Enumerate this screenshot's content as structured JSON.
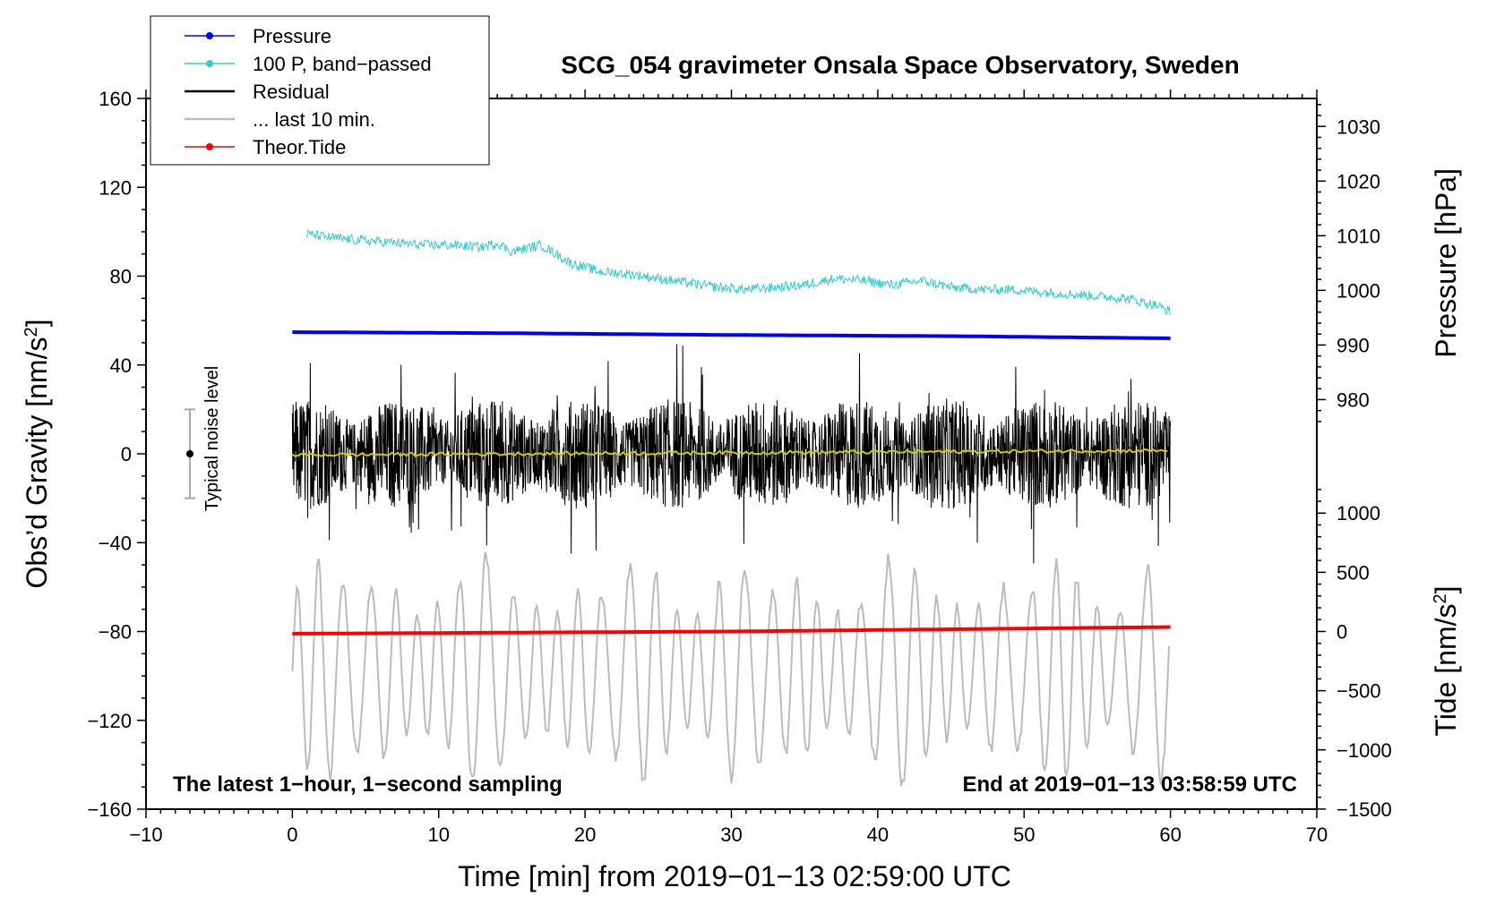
{
  "chart_data": {
    "type": "line",
    "title": "SCG_054 gravimeter Onsala Space Observatory, Sweden",
    "xlabel": "Time [min] from 2019−01−13 02:59:00 UTC",
    "ylabel_left": "Obs’d Gravity [nm/s²]",
    "ylabel_right_pressure": "Pressure [hPa]",
    "ylabel_right_tide": "Tide [nm/s²]",
    "xlim": [
      -10,
      70
    ],
    "ylim_left": [
      -160,
      160
    ],
    "x_ticks": [
      -10,
      0,
      10,
      20,
      30,
      40,
      50,
      60,
      70
    ],
    "x_tick_labels": [
      "−10",
      "0",
      "10",
      "20",
      "30",
      "40",
      "50",
      "60",
      "70"
    ],
    "y_ticks_left": [
      160,
      120,
      80,
      40,
      0,
      -40,
      -80,
      -120,
      -160
    ],
    "y_tick_labels_left": [
      "160",
      "120",
      "80",
      "40",
      "0",
      "−40",
      "−80",
      "−120",
      "−160"
    ],
    "pressure_axis": {
      "ticks": [
        1030,
        1020,
        1010,
        1000,
        990,
        980
      ],
      "labels": [
        "1030",
        "1020",
        "1010",
        "1000",
        "990",
        "980"
      ],
      "gravity_at_1030": 147.4,
      "gravity_per_hPa": 2.46
    },
    "tide_axis": {
      "ticks": [
        1000,
        500,
        0,
        -500,
        -1000,
        -1500
      ],
      "labels": [
        "1000",
        "500",
        "0",
        "−500",
        "−1000",
        "−1500"
      ],
      "gravity_at_0": -80,
      "gravity_per_unit": 0.0533
    },
    "annotation_left": "The latest 1−hour, 1−second sampling",
    "annotation_right": "End at 2019−01−13 03:58:59 UTC",
    "noise_label": "Typical noise level",
    "noise_bar": {
      "x": -7,
      "center": 0,
      "half_range": 20
    },
    "legend": [
      {
        "label": "Pressure",
        "color": "#0000ff",
        "marker": true
      },
      {
        "label": "100 P, band−passed",
        "color": "#33cccc",
        "marker": true
      },
      {
        "label": "Residual",
        "color": "#000000",
        "marker": false
      },
      {
        "label": "... last 10 min.",
        "color": "#bbbbbb",
        "marker": false
      },
      {
        "label": "Theor.Tide",
        "color": "#ff0000",
        "marker": true
      }
    ],
    "series": [
      {
        "name": "Pressure",
        "color": "#0000ff",
        "x": [
          0,
          15,
          30,
          45,
          60
        ],
        "y": [
          54.8,
          54.3,
          53.5,
          53.0,
          52.0
        ]
      },
      {
        "name": "100 P, band−passed",
        "color": "#33cccc",
        "x": [
          1,
          3,
          5,
          7,
          9,
          11,
          13,
          14,
          15,
          17,
          19,
          21,
          23,
          25,
          27,
          29,
          31,
          33,
          35,
          37,
          39,
          41,
          43,
          45,
          47,
          49,
          51,
          53,
          55,
          57,
          59,
          60
        ],
        "y": [
          99,
          97,
          96,
          95,
          94,
          94,
          93,
          95,
          91,
          94,
          86,
          82,
          81,
          79,
          77,
          75,
          74,
          75,
          76,
          79,
          78,
          76,
          78,
          75,
          74,
          74,
          73,
          72,
          71,
          70,
          67,
          64
        ]
      },
      {
        "name": "Residual",
        "color": "#000000",
        "x_range": [
          0,
          60
        ],
        "typical_amplitude": 25,
        "peak_min": -57,
        "peak_max": 66
      },
      {
        "name": "... last 10 min.",
        "color": "#bbbbbb",
        "x_range": [
          0,
          60
        ],
        "center": -98,
        "peak_min": -150,
        "peak_max": -40
      },
      {
        "name": "Theor.Tide",
        "color": "#ff0000",
        "x": [
          0,
          15,
          30,
          45,
          60
        ],
        "y": [
          -81,
          -80.5,
          -80,
          -79,
          -78
        ]
      },
      {
        "name": "Smoothed residual",
        "color": "#cccc00",
        "x": [
          0,
          60
        ],
        "y": [
          -0.5,
          1.5
        ]
      }
    ]
  }
}
